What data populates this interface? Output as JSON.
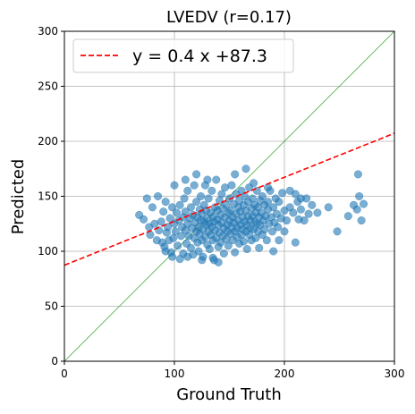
{
  "chart_data": {
    "type": "scatter",
    "title": "LVEDV (r=0.17)",
    "xlabel": "Ground Truth",
    "ylabel": "Predicted",
    "xlim": [
      0,
      300
    ],
    "ylim": [
      0,
      300
    ],
    "xticks": [
      0,
      100,
      200,
      300
    ],
    "yticks": [
      0,
      50,
      100,
      150,
      200,
      250,
      300
    ],
    "grid": true,
    "legend_position": "top-left",
    "legend": [
      {
        "label": "y = 0.4 x +87.3",
        "style": "dashed",
        "color": "#ff0000"
      }
    ],
    "fit_line": {
      "slope": 0.4,
      "intercept": 87.3,
      "color": "#ff0000"
    },
    "identity_line": {
      "slope": 1,
      "intercept": 0,
      "color": "#2ca02c"
    },
    "point_color": "#1f77b4",
    "points": [
      [
        68,
        133
      ],
      [
        72,
        129
      ],
      [
        75,
        148
      ],
      [
        77,
        122
      ],
      [
        78,
        115
      ],
      [
        80,
        140
      ],
      [
        82,
        125
      ],
      [
        84,
        110
      ],
      [
        85,
        150
      ],
      [
        86,
        119
      ],
      [
        88,
        127
      ],
      [
        89,
        108
      ],
      [
        90,
        136
      ],
      [
        91,
        104
      ],
      [
        92,
        145
      ],
      [
        93,
        117
      ],
      [
        94,
        122
      ],
      [
        95,
        110
      ],
      [
        96,
        130
      ],
      [
        97,
        99
      ],
      [
        98,
        140
      ],
      [
        99,
        112
      ],
      [
        100,
        125
      ],
      [
        101,
        118
      ],
      [
        102,
        135
      ],
      [
        103,
        105
      ],
      [
        104,
        128
      ],
      [
        105,
        142
      ],
      [
        106,
        114
      ],
      [
        107,
        122
      ],
      [
        108,
        131
      ],
      [
        108,
        98
      ],
      [
        109,
        148
      ],
      [
        110,
        119
      ],
      [
        110,
        136
      ],
      [
        111,
        107
      ],
      [
        112,
        125
      ],
      [
        112,
        155
      ],
      [
        113,
        114
      ],
      [
        114,
        130
      ],
      [
        115,
        103
      ],
      [
        115,
        140
      ],
      [
        116,
        121
      ],
      [
        117,
        97
      ],
      [
        117,
        133
      ],
      [
        118,
        112
      ],
      [
        118,
        160
      ],
      [
        119,
        126
      ],
      [
        120,
        118
      ],
      [
        120,
        145
      ],
      [
        121,
        108
      ],
      [
        121,
        131
      ],
      [
        122,
        122
      ],
      [
        122,
        100
      ],
      [
        123,
        138
      ],
      [
        123,
        116
      ],
      [
        124,
        128
      ],
      [
        124,
        150
      ],
      [
        125,
        110
      ],
      [
        125,
        134
      ],
      [
        126,
        120
      ],
      [
        126,
        95
      ],
      [
        127,
        142
      ],
      [
        127,
        127
      ],
      [
        128,
        113
      ],
      [
        128,
        160
      ],
      [
        129,
        124
      ],
      [
        129,
        137
      ],
      [
        130,
        106
      ],
      [
        130,
        130
      ],
      [
        131,
        118
      ],
      [
        131,
        148
      ],
      [
        132,
        125
      ],
      [
        132,
        102
      ],
      [
        133,
        135
      ],
      [
        133,
        115
      ],
      [
        134,
        122
      ],
      [
        134,
        155
      ],
      [
        135,
        110
      ],
      [
        135,
        131
      ],
      [
        136,
        127
      ],
      [
        136,
        92
      ],
      [
        137,
        140
      ],
      [
        137,
        119
      ],
      [
        138,
        112
      ],
      [
        138,
        165
      ],
      [
        139,
        129
      ],
      [
        139,
        137
      ],
      [
        140,
        104
      ],
      [
        140,
        124
      ],
      [
        141,
        117
      ],
      [
        141,
        146
      ],
      [
        142,
        133
      ],
      [
        142,
        108
      ],
      [
        143,
        126
      ],
      [
        143,
        152
      ],
      [
        144,
        114
      ],
      [
        144,
        139
      ],
      [
        145,
        121
      ],
      [
        145,
        98
      ],
      [
        146,
        131
      ],
      [
        146,
        158
      ],
      [
        147,
        111
      ],
      [
        147,
        142
      ],
      [
        148,
        124
      ],
      [
        148,
        118
      ],
      [
        149,
        135
      ],
      [
        149,
        105
      ],
      [
        150,
        128
      ],
      [
        150,
        148
      ],
      [
        151,
        116
      ],
      [
        151,
        137
      ],
      [
        152,
        122
      ],
      [
        152,
        160
      ],
      [
        153,
        110
      ],
      [
        153,
        131
      ],
      [
        154,
        126
      ],
      [
        154,
        143
      ],
      [
        155,
        118
      ],
      [
        155,
        99
      ],
      [
        156,
        134
      ],
      [
        156,
        152
      ],
      [
        157,
        121
      ],
      [
        157,
        113
      ],
      [
        158,
        140
      ],
      [
        158,
        128
      ],
      [
        159,
        107
      ],
      [
        159,
        146
      ],
      [
        160,
        124
      ],
      [
        160,
        136
      ],
      [
        161,
        115
      ],
      [
        161,
        155
      ],
      [
        162,
        131
      ],
      [
        162,
        120
      ],
      [
        163,
        142
      ],
      [
        163,
        109
      ],
      [
        164,
        127
      ],
      [
        164,
        150
      ],
      [
        165,
        118
      ],
      [
        165,
        137
      ],
      [
        166,
        124
      ],
      [
        166,
        102
      ],
      [
        167,
        145
      ],
      [
        167,
        132
      ],
      [
        168,
        115
      ],
      [
        168,
        158
      ],
      [
        169,
        128
      ],
      [
        169,
        121
      ],
      [
        170,
        139
      ],
      [
        170,
        110
      ],
      [
        171,
        132
      ],
      [
        171,
        148
      ],
      [
        172,
        120
      ],
      [
        172,
        162
      ],
      [
        173,
        127
      ],
      [
        173,
        142
      ],
      [
        174,
        112
      ],
      [
        174,
        135
      ],
      [
        175,
        125
      ],
      [
        175,
        155
      ],
      [
        176,
        118
      ],
      [
        176,
        140
      ],
      [
        177,
        131
      ],
      [
        177,
        103
      ],
      [
        178,
        146
      ],
      [
        178,
        124
      ],
      [
        179,
        135
      ],
      [
        180,
        115
      ],
      [
        180,
        150
      ],
      [
        181,
        128
      ],
      [
        182,
        142
      ],
      [
        182,
        120
      ],
      [
        183,
        132
      ],
      [
        184,
        110
      ],
      [
        185,
        145
      ],
      [
        185,
        138
      ],
      [
        186,
        125
      ],
      [
        187,
        155
      ],
      [
        188,
        131
      ],
      [
        189,
        118
      ],
      [
        190,
        140
      ],
      [
        191,
        126
      ],
      [
        192,
        148
      ],
      [
        193,
        134
      ],
      [
        194,
        122
      ],
      [
        195,
        145
      ],
      [
        197,
        130
      ],
      [
        198,
        153
      ],
      [
        200,
        137
      ],
      [
        202,
        128
      ],
      [
        205,
        140
      ],
      [
        208,
        135
      ],
      [
        210,
        152
      ],
      [
        212,
        145
      ],
      [
        215,
        138
      ],
      [
        218,
        128
      ],
      [
        220,
        148
      ],
      [
        222,
        134
      ],
      [
        225,
        142
      ],
      [
        190,
        100
      ],
      [
        195,
        110
      ],
      [
        200,
        118
      ],
      [
        210,
        108
      ],
      [
        213,
        129
      ],
      [
        230,
        135
      ],
      [
        240,
        140
      ],
      [
        248,
        118
      ],
      [
        258,
        132
      ],
      [
        263,
        142
      ],
      [
        266,
        138
      ],
      [
        267,
        170
      ],
      [
        268,
        150
      ],
      [
        270,
        128
      ],
      [
        272,
        143
      ],
      [
        140,
        90
      ],
      [
        120,
        170
      ],
      [
        165,
        175
      ],
      [
        130,
        165
      ],
      [
        110,
        165
      ],
      [
        100,
        160
      ],
      [
        155,
        170
      ],
      [
        185,
        158
      ],
      [
        205,
        155
      ],
      [
        215,
        148
      ],
      [
        92,
        100
      ],
      [
        98,
        95
      ],
      [
        105,
        93
      ],
      [
        112,
        95
      ],
      [
        125,
        92
      ],
      [
        135,
        94
      ]
    ]
  }
}
